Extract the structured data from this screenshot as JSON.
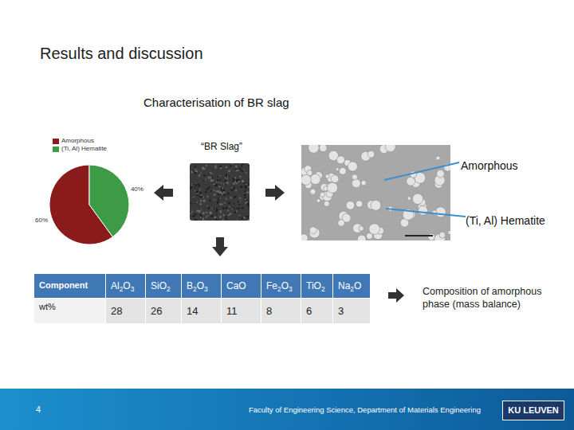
{
  "header": {
    "title": "Results and discussion",
    "subtitle": "Characterisation of BR slag",
    "image_label": "“BR Slag”"
  },
  "chart_data": {
    "type": "pie",
    "categories": [
      "Amorphous",
      "(Ti, Al) Hematite"
    ],
    "values": [
      60,
      40
    ],
    "value_labels": [
      "60%",
      "40%"
    ],
    "colors": [
      "#8b1a1a",
      "#3d9b45"
    ],
    "legend": "top",
    "data_labels": true
  },
  "annotations": [
    "Amorphous",
    "(Ti, Al) Hematite"
  ],
  "table": {
    "columns": [
      "Component",
      "Al2O3",
      "SiO2",
      "B2O3",
      "CaO",
      "Fe2O3",
      "TiO2",
      "Na2O"
    ],
    "rows": [
      [
        "wt%",
        28,
        26,
        14,
        11,
        8,
        6,
        3
      ]
    ]
  },
  "table_note": "Composition of amorphous phase (mass balance)",
  "footer": {
    "page": 4,
    "text": "Faculty of Engineering Science, Department of Materials Engineering",
    "logo": "KU LEUVEN"
  }
}
